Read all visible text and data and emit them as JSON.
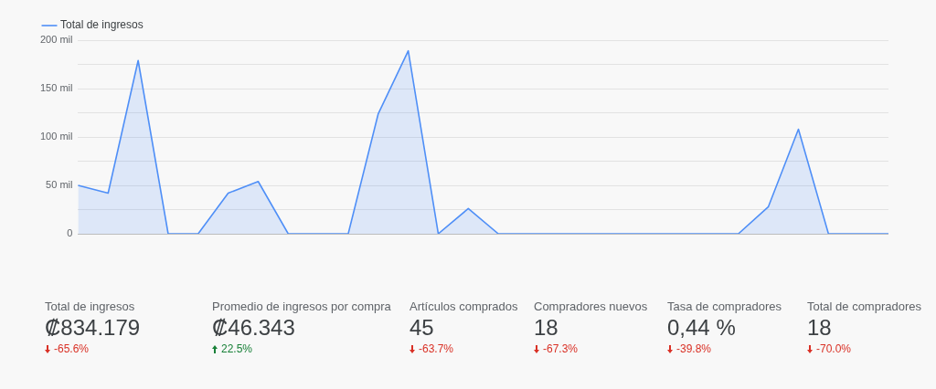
{
  "chart_data": [
    {
      "type": "area",
      "categories": [
        null,
        null,
        null,
        null,
        null,
        null,
        null,
        null,
        null,
        null,
        null,
        null,
        null,
        null,
        null,
        null,
        null,
        null,
        null,
        null,
        null,
        null,
        null,
        null,
        null,
        null,
        null,
        null
      ],
      "series": [
        {
          "name": "Total de ingresos",
          "color": "#4f8ff7",
          "values": [
            50,
            42,
            179,
            0,
            0,
            42,
            54,
            0,
            0,
            0,
            124,
            189,
            0,
            26,
            0,
            0,
            0,
            0,
            0,
            0,
            0,
            0,
            0,
            28,
            108,
            0,
            0,
            0
          ]
        }
      ],
      "ylim": [
        0,
        200
      ],
      "yticks": [
        0,
        {
          "value": 25,
          "label": null
        },
        {
          "value": 50,
          "label": "50 mil"
        },
        {
          "value": 75,
          "label": null
        },
        {
          "value": 100,
          "label": "100 mil"
        },
        {
          "value": 125,
          "label": null
        },
        {
          "value": 150,
          "label": "150 mil"
        },
        {
          "value": 175,
          "label": null
        },
        {
          "value": 200,
          "label": "200 mil"
        }
      ],
      "grid": "y",
      "legend": "top left",
      "marker": "none",
      "tick_labels": "y"
    },
    {
      "type": "other",
      "categories": [
        "Total de ingresos",
        "Promedio de ingresos por compra",
        "Artículos comprados",
        "Compradores nuevos",
        "Tasa de compradores",
        "Total de compradores"
      ],
      "annotations": [
        "₡834.179",
        "₡46.343",
        "45",
        "18",
        "0,44 %",
        "18"
      ],
      "value_labels": [
        "-65.6%",
        "22.5%",
        "-63.7%",
        "-67.3%",
        "-39.8%",
        "-70.0%"
      ],
      "colors": [
        "#d93025",
        "#188038",
        "#d93025",
        "#d93025",
        "#d93025",
        "#d93025"
      ]
    }
  ]
}
